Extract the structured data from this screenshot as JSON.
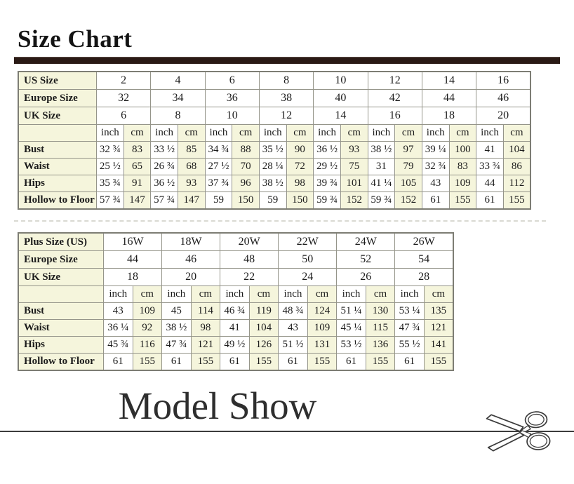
{
  "page": {
    "title": "Size Chart",
    "section2_title": "Model Show"
  },
  "colors": {
    "cream_cell": "#f5f5dc",
    "title_bar": "#2a1a15",
    "grid_line": "#95958a"
  },
  "unit_labels": [
    "inch",
    "cm"
  ],
  "tables": [
    {
      "name": "standard-sizes",
      "size_rows": [
        {
          "label": "US Size",
          "values": [
            "2",
            "4",
            "6",
            "8",
            "10",
            "12",
            "14",
            "16"
          ]
        },
        {
          "label": "Europe Size",
          "values": [
            "32",
            "34",
            "36",
            "38",
            "40",
            "42",
            "44",
            "46"
          ]
        },
        {
          "label": "UK Size",
          "values": [
            "6",
            "8",
            "10",
            "12",
            "14",
            "16",
            "18",
            "20"
          ]
        }
      ],
      "measure_rows": [
        {
          "label": "Bust",
          "pairs": [
            [
              "32 ¾",
              "83"
            ],
            [
              "33 ½",
              "85"
            ],
            [
              "34 ¾",
              "88"
            ],
            [
              "35 ½",
              "90"
            ],
            [
              "36 ½",
              "93"
            ],
            [
              "38 ½",
              "97"
            ],
            [
              "39 ¼",
              "100"
            ],
            [
              "41",
              "104"
            ]
          ]
        },
        {
          "label": "Waist",
          "pairs": [
            [
              "25 ½",
              "65"
            ],
            [
              "26 ¾",
              "68"
            ],
            [
              "27 ½",
              "70"
            ],
            [
              "28 ¼",
              "72"
            ],
            [
              "29 ½",
              "75"
            ],
            [
              "31",
              "79"
            ],
            [
              "32 ¾",
              "83"
            ],
            [
              "33 ¾",
              "86"
            ]
          ]
        },
        {
          "label": "Hips",
          "pairs": [
            [
              "35 ¾",
              "91"
            ],
            [
              "36 ½",
              "93"
            ],
            [
              "37 ¾",
              "96"
            ],
            [
              "38 ½",
              "98"
            ],
            [
              "39 ¾",
              "101"
            ],
            [
              "41 ¼",
              "105"
            ],
            [
              "43",
              "109"
            ],
            [
              "44",
              "112"
            ]
          ]
        },
        {
          "label": "Hollow to Floor",
          "pairs": [
            [
              "57 ¾",
              "147"
            ],
            [
              "57 ¾",
              "147"
            ],
            [
              "59",
              "150"
            ],
            [
              "59",
              "150"
            ],
            [
              "59 ¾",
              "152"
            ],
            [
              "59 ¾",
              "152"
            ],
            [
              "61",
              "155"
            ],
            [
              "61",
              "155"
            ]
          ]
        }
      ]
    },
    {
      "name": "plus-sizes",
      "size_rows": [
        {
          "label": "Plus Size (US)",
          "values": [
            "16W",
            "18W",
            "20W",
            "22W",
            "24W",
            "26W"
          ]
        },
        {
          "label": "Europe Size",
          "values": [
            "44",
            "46",
            "48",
            "50",
            "52",
            "54"
          ]
        },
        {
          "label": "UK Size",
          "values": [
            "18",
            "20",
            "22",
            "24",
            "26",
            "28"
          ]
        }
      ],
      "measure_rows": [
        {
          "label": "Bust",
          "pairs": [
            [
              "43",
              "109"
            ],
            [
              "45",
              "114"
            ],
            [
              "46 ¾",
              "119"
            ],
            [
              "48 ¾",
              "124"
            ],
            [
              "51 ¼",
              "130"
            ],
            [
              "53 ¼",
              "135"
            ]
          ]
        },
        {
          "label": "Waist",
          "pairs": [
            [
              "36 ¼",
              "92"
            ],
            [
              "38 ½",
              "98"
            ],
            [
              "41",
              "104"
            ],
            [
              "43",
              "109"
            ],
            [
              "45 ¼",
              "115"
            ],
            [
              "47 ¾",
              "121"
            ]
          ]
        },
        {
          "label": "Hips",
          "pairs": [
            [
              "45 ¾",
              "116"
            ],
            [
              "47 ¾",
              "121"
            ],
            [
              "49 ½",
              "126"
            ],
            [
              "51 ½",
              "131"
            ],
            [
              "53 ½",
              "136"
            ],
            [
              "55 ½",
              "141"
            ]
          ]
        },
        {
          "label": "Hollow to Floor",
          "pairs": [
            [
              "61",
              "155"
            ],
            [
              "61",
              "155"
            ],
            [
              "61",
              "155"
            ],
            [
              "61",
              "155"
            ],
            [
              "61",
              "155"
            ],
            [
              "61",
              "155"
            ]
          ]
        }
      ]
    }
  ]
}
